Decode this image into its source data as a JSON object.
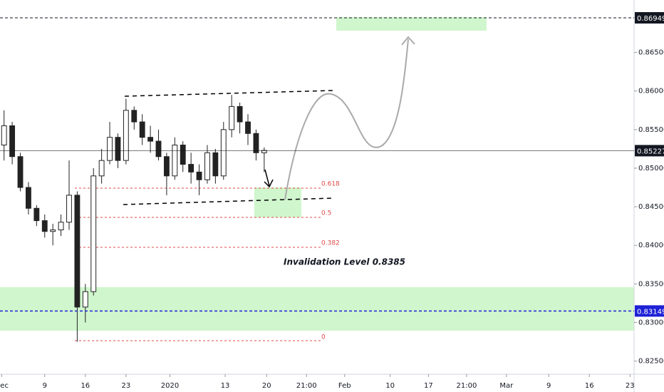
{
  "chart_data": {
    "type": "candlestick",
    "x": [
      0,
      1,
      2,
      3,
      4,
      5,
      6,
      7,
      8,
      9,
      10,
      11,
      12,
      13,
      14,
      15,
      16,
      17,
      18,
      19,
      20,
      21,
      22,
      23,
      24,
      25,
      26,
      27,
      28,
      29,
      30,
      31,
      32
    ],
    "open": [
      0.853,
      0.8555,
      0.8515,
      0.8475,
      0.8448,
      0.8432,
      0.8418,
      0.842,
      0.843,
      0.8465,
      0.832,
      0.834,
      0.849,
      0.851,
      0.854,
      0.851,
      0.8575,
      0.856,
      0.854,
      0.8535,
      0.8515,
      0.849,
      0.853,
      0.8505,
      0.8495,
      0.8485,
      0.852,
      0.849,
      0.855,
      0.858,
      0.856,
      0.8545,
      0.852
    ],
    "high": [
      0.8575,
      0.856,
      0.852,
      0.8482,
      0.8452,
      0.844,
      0.8428,
      0.844,
      0.851,
      0.847,
      0.835,
      0.85,
      0.8525,
      0.856,
      0.8545,
      0.859,
      0.858,
      0.857,
      0.8555,
      0.855,
      0.852,
      0.854,
      0.8535,
      0.852,
      0.8505,
      0.853,
      0.8525,
      0.856,
      0.8595,
      0.8585,
      0.857,
      0.855,
      0.8527
    ],
    "low": [
      0.851,
      0.8505,
      0.847,
      0.844,
      0.8425,
      0.841,
      0.84,
      0.8412,
      0.842,
      0.8275,
      0.83,
      0.8335,
      0.848,
      0.8505,
      0.85,
      0.8505,
      0.855,
      0.853,
      0.852,
      0.851,
      0.8465,
      0.8485,
      0.8495,
      0.848,
      0.8465,
      0.848,
      0.848,
      0.8485,
      0.854,
      0.8545,
      0.853,
      0.851,
      0.8495
    ],
    "close": [
      0.8555,
      0.8515,
      0.8475,
      0.8448,
      0.8432,
      0.8418,
      0.842,
      0.843,
      0.8465,
      0.832,
      0.834,
      0.849,
      0.851,
      0.854,
      0.851,
      0.8575,
      0.856,
      0.854,
      0.8535,
      0.8515,
      0.849,
      0.853,
      0.8505,
      0.8495,
      0.8485,
      0.852,
      0.849,
      0.855,
      0.858,
      0.856,
      0.8545,
      0.852,
      0.8523
    ],
    "xlim": [
      -0.5,
      77.5
    ],
    "xticks": [
      {
        "value": -0.3,
        "label": "Dec"
      },
      {
        "value": 5,
        "label": "9"
      },
      {
        "value": 10,
        "label": "16"
      },
      {
        "value": 15,
        "label": "23"
      },
      {
        "value": 20.4,
        "label": "2020"
      },
      {
        "value": 27.2,
        "label": "13"
      },
      {
        "value": 32.3,
        "label": "20"
      },
      {
        "value": 37.2,
        "label": "21:00"
      },
      {
        "value": 41.9,
        "label": "Feb"
      },
      {
        "value": 47.5,
        "label": "10"
      },
      {
        "value": 52.2,
        "label": "17"
      },
      {
        "value": 56.9,
        "label": "21:00"
      },
      {
        "value": 61.8,
        "label": "Mar"
      },
      {
        "value": 67,
        "label": "9"
      },
      {
        "value": 72,
        "label": "16"
      },
      {
        "value": 77,
        "label": "23"
      }
    ],
    "ylim": [
      0.8233,
      0.8718
    ],
    "yticks": [
      {
        "value": 0.825,
        "label": "0.82500"
      },
      {
        "value": 0.83,
        "label": "0.83000"
      },
      {
        "value": 0.835,
        "label": "0.83500"
      },
      {
        "value": 0.84,
        "label": "0.84000"
      },
      {
        "value": 0.845,
        "label": "0.84500"
      },
      {
        "value": 0.85,
        "label": "0.85000"
      },
      {
        "value": 0.855,
        "label": "0.85500"
      },
      {
        "value": 0.86,
        "label": "0.86000"
      },
      {
        "value": 0.865,
        "label": "0.86500"
      }
    ],
    "price_lines": [
      {
        "value": 0.86949,
        "color": "#131722"
      },
      {
        "value": 0.85227,
        "color": "#131722"
      },
      {
        "value": 0.83149,
        "color": "#1e22d6"
      }
    ],
    "fib_labels": [
      "0.618",
      "0.5",
      "0.382",
      "0"
    ],
    "annotation": "Invalidation Level 0.8385"
  }
}
